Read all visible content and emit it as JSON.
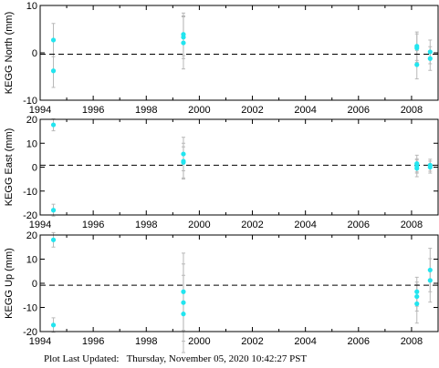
{
  "chart_data": [
    {
      "type": "scatter",
      "ylabel": "KEGG North (mm)",
      "xlim": [
        1994,
        2009
      ],
      "ylim": [
        -10,
        10
      ],
      "xticks": [
        1994,
        1996,
        1998,
        2000,
        2002,
        2004,
        2006,
        2008
      ],
      "yticks": [
        -10,
        0,
        10
      ],
      "reference_line": -0.3,
      "points": [
        {
          "x": 1994.5,
          "y": 2.7,
          "err": 3.5
        },
        {
          "x": 1994.5,
          "y": -3.8,
          "err": 3.5
        },
        {
          "x": 1999.4,
          "y": 3.9,
          "err": 4.5
        },
        {
          "x": 1999.4,
          "y": 3.3,
          "err": 4.5
        },
        {
          "x": 1999.4,
          "y": 2.1,
          "err": 5.5
        },
        {
          "x": 2008.2,
          "y": 1.4,
          "err": 3.0
        },
        {
          "x": 2008.2,
          "y": 1.0,
          "err": 3.0
        },
        {
          "x": 2008.2,
          "y": -2.5,
          "err": 3.0
        },
        {
          "x": 2008.7,
          "y": 0.2,
          "err": 2.5
        },
        {
          "x": 2008.7,
          "y": -1.2,
          "err": 2.5
        }
      ]
    },
    {
      "type": "scatter",
      "ylabel": "KEGG East (mm)",
      "xlim": [
        1994,
        2009
      ],
      "ylim": [
        -20,
        20
      ],
      "xticks": [
        1994,
        1996,
        1998,
        2000,
        2002,
        2004,
        2006,
        2008
      ],
      "yticks": [
        -20,
        -10,
        0,
        10,
        20
      ],
      "reference_line": 0.8,
      "points": [
        {
          "x": 1994.5,
          "y": 17.7,
          "err": 2.5
        },
        {
          "x": 1994.5,
          "y": -18.0,
          "err": 2.5
        },
        {
          "x": 1999.4,
          "y": 5.5,
          "err": 7.0
        },
        {
          "x": 1999.4,
          "y": 2.5,
          "err": 7.5
        },
        {
          "x": 1999.4,
          "y": 2.0,
          "err": 6.5
        },
        {
          "x": 2008.2,
          "y": 1.5,
          "err": 3.5
        },
        {
          "x": 2008.2,
          "y": 0.5,
          "err": 3.0
        },
        {
          "x": 2008.2,
          "y": -0.5,
          "err": 3.5
        },
        {
          "x": 2008.7,
          "y": 0.8,
          "err": 2.5
        },
        {
          "x": 2008.7,
          "y": 0.0,
          "err": 2.5
        }
      ]
    },
    {
      "type": "scatter",
      "ylabel": "KEGG Up (mm)",
      "xlim": [
        1994,
        2009
      ],
      "ylim": [
        -20,
        20
      ],
      "xticks": [
        1994,
        1996,
        1998,
        2000,
        2002,
        2004,
        2006,
        2008
      ],
      "yticks": [
        -20,
        -10,
        0,
        10,
        20
      ],
      "reference_line": -0.8,
      "points": [
        {
          "x": 1994.5,
          "y": 18.0,
          "err": 3.0
        },
        {
          "x": 1994.5,
          "y": -17.3,
          "err": 3.0
        },
        {
          "x": 1999.4,
          "y": -3.5,
          "err": 16.0
        },
        {
          "x": 1999.4,
          "y": -8.0,
          "err": 16.0
        },
        {
          "x": 1999.4,
          "y": -12.7,
          "err": 16.0
        },
        {
          "x": 2008.2,
          "y": -3.5,
          "err": 6.0
        },
        {
          "x": 2008.2,
          "y": -5.5,
          "err": 6.0
        },
        {
          "x": 2008.2,
          "y": -8.5,
          "err": 8.0
        },
        {
          "x": 2008.7,
          "y": 5.5,
          "err": 9.0
        },
        {
          "x": 2008.7,
          "y": 1.2,
          "err": 9.0
        }
      ]
    }
  ],
  "colors": {
    "point": "#22e5ef",
    "error_bar": "#b8b8b8",
    "reference_line": "#000000",
    "axes": "#000000"
  },
  "footer": {
    "label": "Plot Last Updated:",
    "timestamp": "Thursday, November 05, 2020 10:42:27 PST"
  }
}
